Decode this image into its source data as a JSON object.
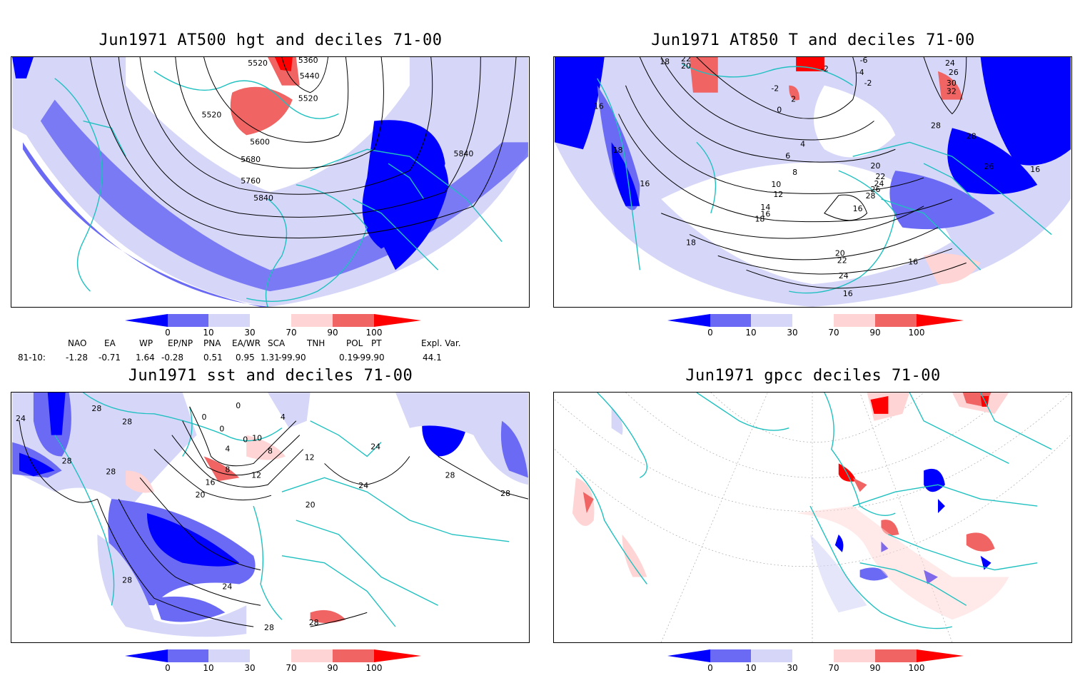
{
  "panels": [
    {
      "title": "Jun1971 AT500 hgt and deciles 71-00",
      "contour_labels": [
        "5520",
        "5360",
        "5440",
        "5520",
        "5520",
        "5600",
        "5680",
        "5760",
        "5840",
        "5840"
      ]
    },
    {
      "title": "Jun1971 AT850 T and deciles 71-00",
      "contour_labels": [
        "18",
        "20",
        "22",
        "-2",
        "-4",
        "-6",
        "-2",
        "-2",
        "2",
        "0",
        "24",
        "26",
        "30",
        "32",
        "28",
        "28",
        "16",
        "18",
        "16",
        "4",
        "6",
        "8",
        "10",
        "12",
        "14",
        "16",
        "18",
        "20",
        "22",
        "24",
        "26",
        "28",
        "16",
        "18",
        "20",
        "22",
        "24",
        "16",
        "16",
        "26",
        "16"
      ]
    },
    {
      "title": "Jun1971 sst and deciles 71-00",
      "contour_labels": [
        "24",
        "28",
        "28",
        "28",
        "28",
        "0",
        "0",
        "0",
        "4",
        "0",
        "10",
        "8",
        "4",
        "8",
        "12",
        "12",
        "16",
        "20",
        "24",
        "20",
        "24",
        "28",
        "28",
        "28",
        "28",
        "24",
        "28"
      ]
    },
    {
      "title": "Jun1971 gpcc deciles 71-00",
      "contour_labels": []
    }
  ],
  "colorbar": {
    "labels": [
      "0",
      "10",
      "30",
      "70",
      "90",
      "100"
    ],
    "colors": [
      "#0000ff",
      "#6a6af5",
      "#d6d6f9",
      "#ffffff",
      "#ffd4d4",
      "#f06464",
      "#ff0000"
    ]
  },
  "indices": {
    "headers": [
      "NAO",
      "EA",
      "WP",
      "EP/NP",
      "PNA",
      "EA/WR",
      "SCA",
      "TNH",
      "POL",
      "PT",
      "Expl. Var."
    ],
    "row_label": "81-10:",
    "values": [
      "-1.28",
      "-0.71",
      "1.64",
      "-0.28",
      "0.51",
      "0.95",
      "1.31",
      "-99.90",
      "0.19",
      "-99.90",
      "44.1"
    ]
  },
  "colors": {
    "land_outline": "#20c0c0",
    "contour": "#000000",
    "grid": "#888888"
  }
}
